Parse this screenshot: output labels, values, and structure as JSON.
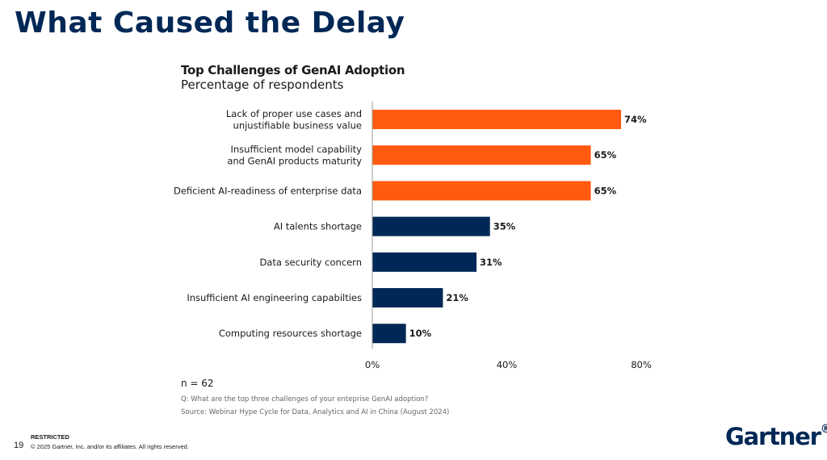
{
  "slide": {
    "title": "What Caused the Delay",
    "page_number": "19",
    "restricted": "RESTRICTED",
    "copyright": "© 2025 Gartner, Inc. and/or its affiliates. All rights reserved.",
    "logo": "Gartner",
    "logo_mark": "®"
  },
  "notes": {
    "n": "n = 62",
    "question": "Q: What are the top three challenges of your enteprise GenAI adoption?",
    "source": "Source: Webinar Hype Cycle for Data, Analytics and AI in China (August 2024)"
  },
  "chart_data": {
    "type": "bar",
    "orientation": "horizontal",
    "title": "Top Challenges of GenAI Adoption",
    "subtitle": "Percentage of respondents",
    "categories": [
      [
        "Lack of proper use cases and",
        "unjustifiable business value"
      ],
      [
        "Insufficient model capability",
        "and GenAI products maturity"
      ],
      [
        "Deficient AI-readiness of enterprise data"
      ],
      [
        "AI talents shortage"
      ],
      [
        "Data security concern"
      ],
      [
        "Insufficient AI engineering capabilties"
      ],
      [
        "Computing resources shortage"
      ]
    ],
    "values": [
      74,
      65,
      65,
      35,
      31,
      21,
      10
    ],
    "value_labels": [
      "74%",
      "65%",
      "65%",
      "35%",
      "31%",
      "21%",
      "10%"
    ],
    "bar_colors": [
      "#FF5A0F",
      "#FF5A0F",
      "#FF5A0F",
      "#002856",
      "#002856",
      "#002856",
      "#002856"
    ],
    "xlim": [
      0,
      80
    ],
    "xticks": [
      0,
      40,
      80
    ],
    "xtick_labels": [
      "0%",
      "40%",
      "80%"
    ],
    "grid": false,
    "legend": "none"
  }
}
